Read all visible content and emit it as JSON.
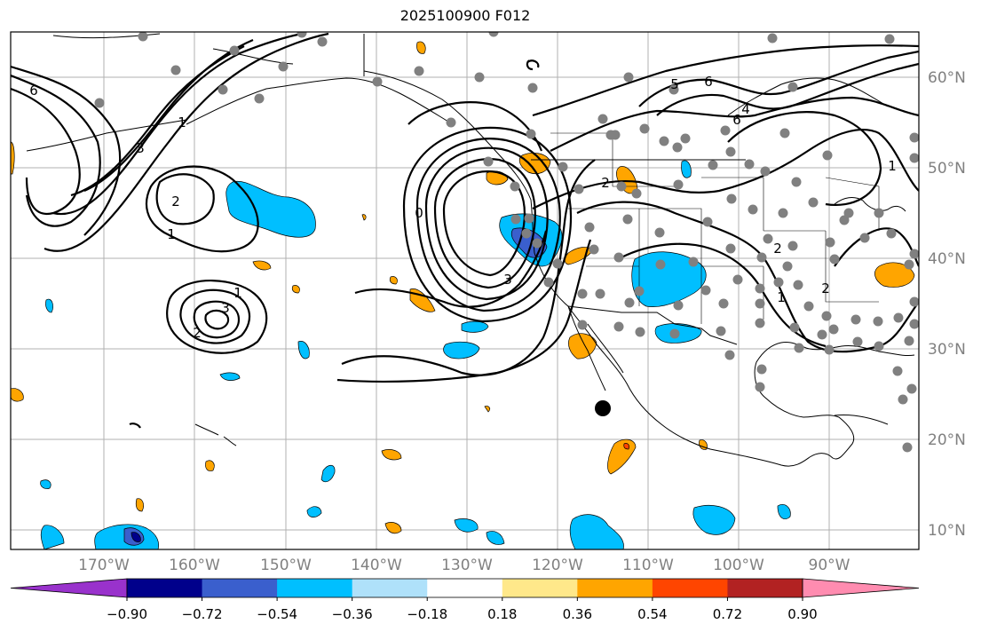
{
  "title": "2025100900 F012",
  "map": {
    "lon_labels": [
      "170°W",
      "160°W",
      "150°W",
      "140°W",
      "130°W",
      "120°W",
      "110°W",
      "100°W",
      "90°W"
    ],
    "lat_labels": [
      "60°N",
      "50°N",
      "40°N",
      "30°N",
      "20°N",
      "10°N"
    ],
    "contour_labels": [
      "6",
      "1",
      "3",
      "2",
      "1",
      "1",
      "3",
      "2",
      "6",
      "0",
      "3",
      "2",
      "5",
      "6",
      "4",
      "2",
      "1",
      "2",
      "1"
    ]
  },
  "colorbar": {
    "ticks": [
      "−0.90",
      "−0.72",
      "−0.54",
      "−0.36",
      "−0.18",
      "0.18",
      "0.36",
      "0.54",
      "0.72",
      "0.90"
    ],
    "colors": [
      "#9932cc",
      "#00008b",
      "#3a5fcd",
      "#00bfff",
      "#afe1fa",
      "#ffffff",
      "#ffe88a",
      "#ffa500",
      "#ff4500",
      "#b22222",
      "#ff8cb0"
    ]
  }
}
